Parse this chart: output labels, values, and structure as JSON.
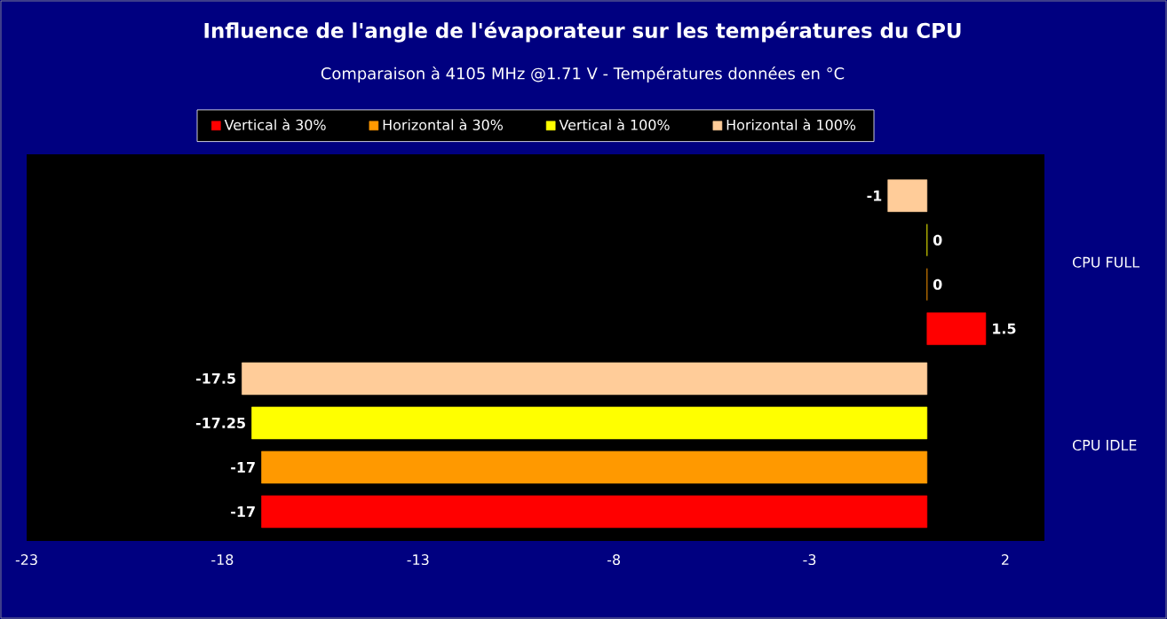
{
  "chart_data": {
    "type": "bar",
    "orientation": "horizontal",
    "title": "Influence de l'angle de l'évaporateur sur les températures du CPU",
    "subtitle": "Comparaison à 4105 MHz @1.71 V - Températures données en °C",
    "categories": [
      "CPU FULL",
      "CPU IDLE"
    ],
    "series": [
      {
        "name": "Vertical à 30%",
        "color": "#ff0000",
        "values": [
          1.5,
          -17
        ]
      },
      {
        "name": "Horizontal à 30%",
        "color": "#ff9900",
        "values": [
          0,
          -17
        ]
      },
      {
        "name": "Vertical à 100%",
        "color": "#ffff00",
        "values": [
          0,
          -17.25
        ]
      },
      {
        "name": "Horizontal à 100%",
        "color": "#ffcc99",
        "values": [
          -1,
          -17.5
        ]
      }
    ],
    "xlim": [
      -23,
      3
    ],
    "xticks": [
      -23,
      -18,
      -13,
      -8,
      -3,
      2
    ],
    "data_labels": true,
    "legend": "top"
  }
}
